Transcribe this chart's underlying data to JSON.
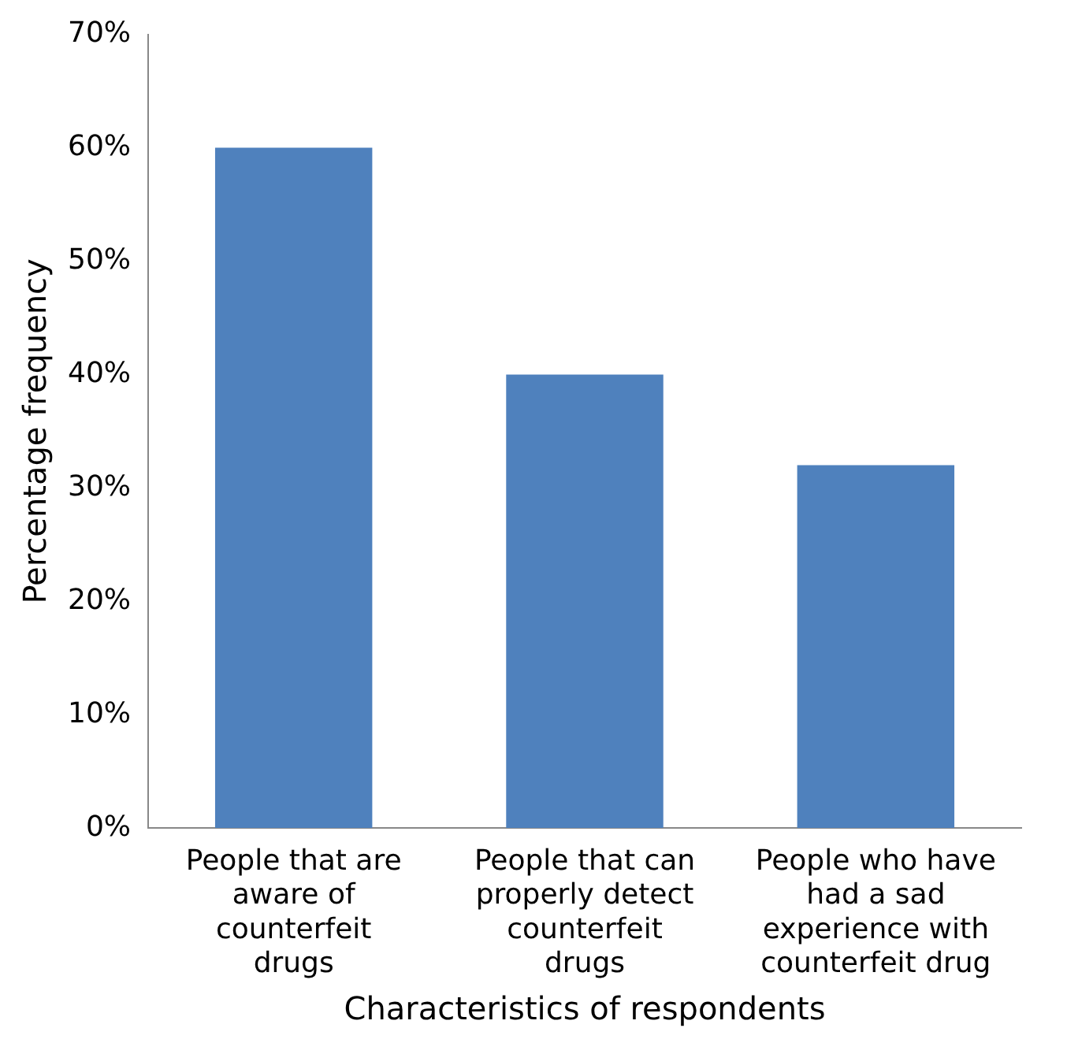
{
  "chart_data": {
    "type": "bar",
    "xlabel": "Characteristics of respondents",
    "ylabel": "Percentage frequency",
    "categories": [
      "People that are aware of counterfeit drugs",
      "People that can properly detect counterfeit drugs",
      "People who have had a sad experience with counterfeit drug"
    ],
    "values": [
      60,
      40,
      32
    ],
    "color": "#4f81bd",
    "ylim": [
      0,
      70
    ],
    "yticks": [
      {
        "value": 0,
        "label": "0%"
      },
      {
        "value": 10,
        "label": "10%"
      },
      {
        "value": 20,
        "label": "20%"
      },
      {
        "value": 30,
        "label": "30%"
      },
      {
        "value": 40,
        "label": "40%"
      },
      {
        "value": 50,
        "label": "50%"
      },
      {
        "value": 60,
        "label": "60%"
      },
      {
        "value": 70,
        "label": "70%"
      }
    ],
    "grid": false,
    "legend": false
  }
}
